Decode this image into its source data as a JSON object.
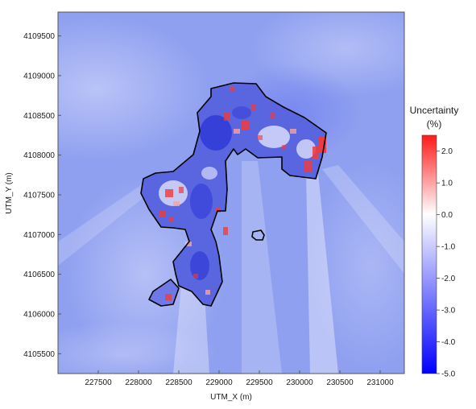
{
  "chart_data": {
    "type": "heatmap",
    "title": "",
    "xlabel": "UTM_X (m)",
    "ylabel": "UTM_Y (m)",
    "xlim": [
      227000,
      231300
    ],
    "ylim": [
      4105250,
      4109800
    ],
    "x_ticks": [
      227500,
      228000,
      228500,
      229000,
      229500,
      230000,
      230500,
      231000
    ],
    "y_ticks": [
      4105500,
      4106000,
      4106500,
      4107000,
      4107500,
      4108000,
      4108500,
      4109000,
      4109500
    ],
    "x_tick_labels": [
      "227500",
      "228000",
      "228500",
      "229000",
      "229500",
      "230000",
      "230500",
      "231000"
    ],
    "y_tick_labels": [
      "4105500",
      "4106000",
      "4106500",
      "4107000",
      "4107500",
      "4108000",
      "4108500",
      "4109000",
      "4109500"
    ],
    "colorbar": {
      "title_line1": "Uncertainty",
      "title_line2": "(%)",
      "min": -5.0,
      "max": 2.5,
      "ticks": [
        2.0,
        1.0,
        0.0,
        -1.0,
        -2.0,
        -3.0,
        -4.0,
        -5.0
      ],
      "tick_labels": [
        "2.0",
        "1.0",
        "0.0",
        "-1.0",
        "-2.0",
        "-3.0",
        "-4.0",
        "-5.0"
      ],
      "colors": {
        "high": "#ff1a1a",
        "mid": "#ffffff",
        "low": "#0000ff"
      }
    },
    "background_value": -1.8,
    "grid": false
  }
}
